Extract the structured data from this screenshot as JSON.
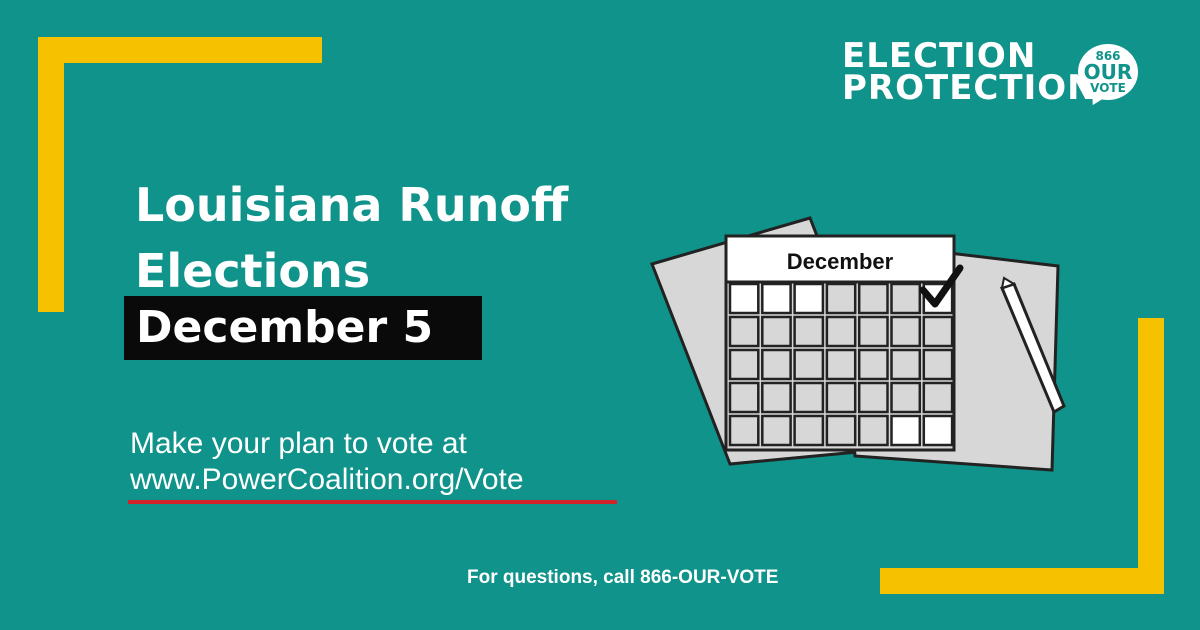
{
  "logo": {
    "line1": "ELECTION",
    "line2": "PROTECTION",
    "bubble_number": "866",
    "bubble_our": "OUR",
    "bubble_vote": "VOTE"
  },
  "headline": {
    "line1": "Louisiana Runoff",
    "line2": "Elections",
    "date": "December 5"
  },
  "cta": {
    "text": "Make your plan to vote at",
    "url": "www.PowerCoalition.org/Vote"
  },
  "calendar": {
    "month": "December"
  },
  "footer": {
    "text": "For questions, call 866-OUR-VOTE"
  },
  "colors": {
    "background": "#0f938a",
    "accent_yellow": "#f6c200",
    "underline_red": "#d1232a",
    "date_box": "#0a0a0a"
  }
}
